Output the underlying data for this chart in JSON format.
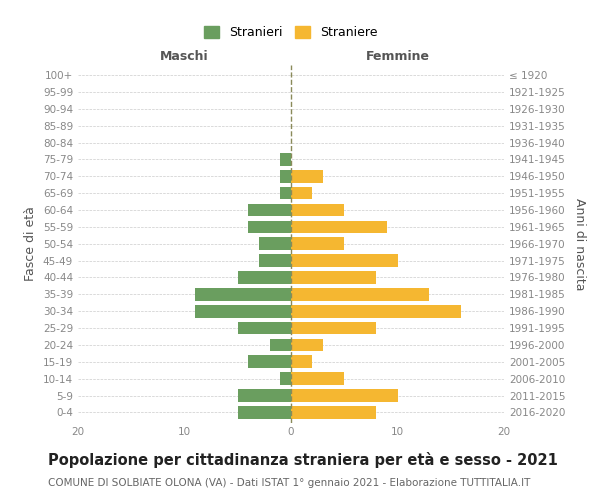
{
  "age_groups": [
    "0-4",
    "5-9",
    "10-14",
    "15-19",
    "20-24",
    "25-29",
    "30-34",
    "35-39",
    "40-44",
    "45-49",
    "50-54",
    "55-59",
    "60-64",
    "65-69",
    "70-74",
    "75-79",
    "80-84",
    "85-89",
    "90-94",
    "95-99",
    "100+"
  ],
  "birth_years": [
    "2016-2020",
    "2011-2015",
    "2006-2010",
    "2001-2005",
    "1996-2000",
    "1991-1995",
    "1986-1990",
    "1981-1985",
    "1976-1980",
    "1971-1975",
    "1966-1970",
    "1961-1965",
    "1956-1960",
    "1951-1955",
    "1946-1950",
    "1941-1945",
    "1936-1940",
    "1931-1935",
    "1926-1930",
    "1921-1925",
    "≤ 1920"
  ],
  "maschi": [
    5,
    5,
    1,
    4,
    2,
    5,
    9,
    9,
    5,
    3,
    3,
    4,
    4,
    1,
    1,
    1,
    0,
    0,
    0,
    0,
    0
  ],
  "femmine": [
    8,
    10,
    5,
    2,
    3,
    8,
    16,
    13,
    8,
    10,
    5,
    9,
    5,
    2,
    3,
    0,
    0,
    0,
    0,
    0,
    0
  ],
  "maschi_color": "#6a9e5f",
  "femmine_color": "#f5b731",
  "center_line_color": "#8a8a5a",
  "grid_color": "#cccccc",
  "bg_color": "#ffffff",
  "title": "Popolazione per cittadinanza straniera per età e sesso - 2021",
  "subtitle": "COMUNE DI SOLBIATE OLONA (VA) - Dati ISTAT 1° gennaio 2021 - Elaborazione TUTTITALIA.IT",
  "ylabel_left": "Fasce di età",
  "ylabel_right": "Anni di nascita",
  "xlabel_left": "Maschi",
  "xlabel_right": "Femmine",
  "legend_maschi": "Stranieri",
  "legend_femmine": "Straniere",
  "xlim": 20,
  "title_fontsize": 10.5,
  "subtitle_fontsize": 7.5,
  "tick_fontsize": 7.5,
  "label_fontsize": 9
}
